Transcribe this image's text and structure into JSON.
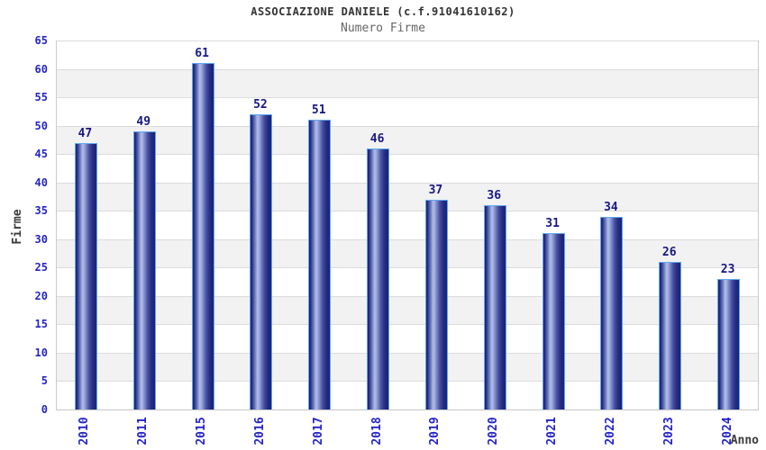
{
  "title": "ASSOCIAZIONE DANIELE (c.f.91041610162)",
  "subtitle": "Numero Firme",
  "chart_data": {
    "type": "bar",
    "categories": [
      "2010",
      "2011",
      "2015",
      "2016",
      "2017",
      "2018",
      "2019",
      "2020",
      "2021",
      "2022",
      "2023",
      "2024"
    ],
    "values": [
      47,
      49,
      61,
      52,
      51,
      46,
      37,
      36,
      31,
      34,
      26,
      23
    ],
    "title": "ASSOCIAZIONE DANIELE (c.f.91041610162)",
    "subtitle": "Numero Firme",
    "xlabel": "Anno",
    "ylabel": "Firme",
    "ylim": [
      0,
      65
    ],
    "ytick_step": 5,
    "grid": true,
    "legend_position": "none",
    "colors": {
      "bar_dark": "#1a2176",
      "bar_highlight": "#b0bce8",
      "bar_border": "#5fa8ef",
      "tick_label": "#2424c8",
      "value_label": "#181884",
      "axis_title": "#3a3a3a",
      "title_text": "#333333",
      "subtitle_text": "#666666",
      "gridline": "#dcdcdc",
      "band_fill": "#f2f2f2",
      "plot_border": "#cccccc",
      "background": "#ffffff"
    }
  }
}
